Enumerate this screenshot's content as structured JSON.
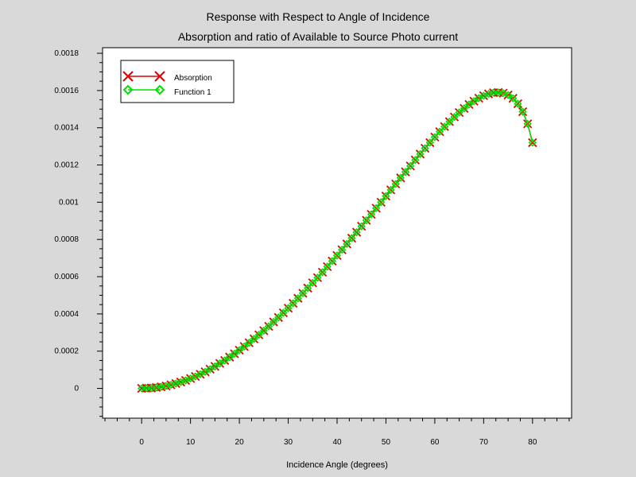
{
  "chart_data": {
    "type": "line",
    "title": "Response with Respect to Angle of Incidence",
    "subtitle": "Absorption and ratio of Available to Source Photo current",
    "xlabel": "Incidence Angle (degrees)",
    "ylabel": "",
    "xlim": [
      -8,
      88
    ],
    "ylim": [
      -0.00016,
      0.00183
    ],
    "x_ticks": [
      0,
      10,
      20,
      30,
      40,
      50,
      60,
      70,
      80
    ],
    "x_tick_labels": [
      "0",
      "10",
      "20",
      "30",
      "40",
      "50",
      "60",
      "70",
      "80"
    ],
    "y_ticks": [
      0,
      0.0002,
      0.0004,
      0.0006,
      0.0008,
      0.001,
      0.0012,
      0.0014,
      0.0016,
      0.0018
    ],
    "y_tick_labels": [
      "0",
      "0.0002",
      "0.0004",
      "0.0006",
      "0.0008",
      "0.001",
      "0.0012",
      "0.0014",
      "0.0016",
      "0.0018"
    ],
    "grid": false,
    "legend_position": "top-left",
    "x": [
      0,
      1,
      2,
      3,
      4,
      5,
      6,
      7,
      8,
      9,
      10,
      11,
      12,
      13,
      14,
      15,
      16,
      17,
      18,
      19,
      20,
      21,
      22,
      23,
      24,
      25,
      26,
      27,
      28,
      29,
      30,
      31,
      32,
      33,
      34,
      35,
      36,
      37,
      38,
      39,
      40,
      41,
      42,
      43,
      44,
      45,
      46,
      47,
      48,
      49,
      50,
      51,
      52,
      53,
      54,
      55,
      56,
      57,
      58,
      59,
      60,
      61,
      62,
      63,
      64,
      65,
      66,
      67,
      68,
      69,
      70,
      71,
      72,
      73,
      74,
      75,
      76,
      77,
      78,
      79,
      80
    ],
    "series": [
      {
        "name": "Absorption",
        "color": "#e00000",
        "marker": "x",
        "values": [
          0,
          1e-06,
          2e-06,
          5e-06,
          8e-06,
          1.3e-05,
          1.9e-05,
          2.6e-05,
          3.4e-05,
          4.3e-05,
          5.3e-05,
          6.4e-05,
          7.6e-05,
          8.9e-05,
          0.000103,
          0.000118,
          0.000134,
          0.00015,
          0.000168,
          0.000186,
          0.000205,
          0.000225,
          0.000245,
          0.000266,
          0.000288,
          0.00031,
          0.000333,
          0.000357,
          0.000381,
          0.000406,
          0.000431,
          0.000457,
          0.000484,
          0.000511,
          0.000539,
          0.000567,
          0.000595,
          0.000624,
          0.000654,
          0.000684,
          0.000714,
          0.000745,
          0.000776,
          0.000807,
          0.000839,
          0.000871,
          0.000903,
          0.000935,
          0.000968,
          0.001,
          0.001033,
          0.001066,
          0.001098,
          0.001131,
          0.001163,
          0.001195,
          0.001227,
          0.001259,
          0.00129,
          0.00132,
          0.00135,
          0.001379,
          0.001406,
          0.001433,
          0.001458,
          0.001482,
          0.001504,
          0.001525,
          0.001543,
          0.001559,
          0.001572,
          0.001582,
          0.001588,
          0.00159,
          0.001586,
          0.001576,
          0.001558,
          0.001529,
          0.001486,
          0.001421,
          0.00132
        ]
      },
      {
        "name": "Function 1",
        "color": "#00e000",
        "marker": "diamond",
        "values": [
          0,
          1e-06,
          2e-06,
          5e-06,
          8e-06,
          1.3e-05,
          1.9e-05,
          2.6e-05,
          3.4e-05,
          4.3e-05,
          5.3e-05,
          6.4e-05,
          7.6e-05,
          8.9e-05,
          0.000103,
          0.000118,
          0.000134,
          0.00015,
          0.000168,
          0.000186,
          0.000205,
          0.000225,
          0.000245,
          0.000266,
          0.000288,
          0.00031,
          0.000333,
          0.000357,
          0.000381,
          0.000406,
          0.000431,
          0.000457,
          0.000484,
          0.000511,
          0.000539,
          0.000567,
          0.000595,
          0.000624,
          0.000654,
          0.000684,
          0.000714,
          0.000745,
          0.000776,
          0.000807,
          0.000839,
          0.000871,
          0.000903,
          0.000935,
          0.000968,
          0.001,
          0.001033,
          0.001066,
          0.001098,
          0.001131,
          0.001163,
          0.001195,
          0.001227,
          0.001259,
          0.00129,
          0.00132,
          0.00135,
          0.001379,
          0.001406,
          0.001433,
          0.001458,
          0.001482,
          0.001504,
          0.001525,
          0.001543,
          0.001559,
          0.001572,
          0.001582,
          0.001588,
          0.00159,
          0.001586,
          0.001576,
          0.001558,
          0.001529,
          0.001486,
          0.001421,
          0.00132
        ]
      }
    ]
  }
}
